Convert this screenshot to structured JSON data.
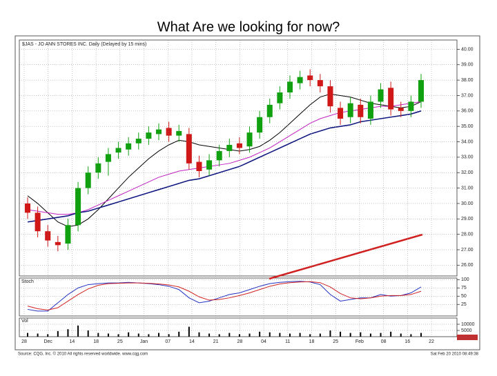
{
  "title": "What Are we looking for now?",
  "chart_data": [
    {
      "type": "candlestick",
      "title": "$JAS - JO ANN STORES INC. Daily (Delayed by 15 mins)",
      "open": [
        30.0,
        29.4,
        28.2,
        27.5,
        27.4,
        28.6,
        31.0,
        32.0,
        32.7,
        33.3,
        33.5,
        33.9,
        34.2,
        34.5,
        34.9,
        34.4,
        34.5,
        32.7,
        32.2,
        32.8,
        33.4,
        33.9,
        33.7,
        34.6,
        35.6,
        36.5,
        37.2,
        37.8,
        38.3,
        38.0,
        37.6,
        36.2,
        35.6,
        36.4,
        35.5,
        36.6,
        37.5,
        36.2,
        36.0,
        36.6
      ],
      "high": [
        30.4,
        29.8,
        28.6,
        27.9,
        29.0,
        31.4,
        32.4,
        33.0,
        33.6,
        34.0,
        34.3,
        34.6,
        35.0,
        35.2,
        35.3,
        35.1,
        34.9,
        33.1,
        33.2,
        33.8,
        34.2,
        34.3,
        35.0,
        36.0,
        36.8,
        37.6,
        38.3,
        38.6,
        38.7,
        38.4,
        38.0,
        36.6,
        36.9,
        36.8,
        37.0,
        37.8,
        37.9,
        36.6,
        37.0,
        38.4
      ],
      "low": [
        29.0,
        27.8,
        27.2,
        26.9,
        27.0,
        28.2,
        30.6,
        31.6,
        31.8,
        32.9,
        33.1,
        33.5,
        33.8,
        34.1,
        34.0,
        34.0,
        32.2,
        31.7,
        31.8,
        32.4,
        33.0,
        33.2,
        33.3,
        34.2,
        35.2,
        36.1,
        36.8,
        37.4,
        37.6,
        37.2,
        35.9,
        35.1,
        35.2,
        35.2,
        35.1,
        36.2,
        35.7,
        35.6,
        35.6,
        36.2
      ],
      "close": [
        29.4,
        28.2,
        27.6,
        27.3,
        28.6,
        31.0,
        32.0,
        32.6,
        33.2,
        33.6,
        33.9,
        34.2,
        34.6,
        34.8,
        34.4,
        34.7,
        32.6,
        32.1,
        32.8,
        33.4,
        33.8,
        33.6,
        34.6,
        35.6,
        36.4,
        37.2,
        37.9,
        38.2,
        38.0,
        37.6,
        36.3,
        35.5,
        36.5,
        35.6,
        36.6,
        37.4,
        36.1,
        36.0,
        36.6,
        38.0
      ],
      "up_color": "#10a010",
      "down_color": "#d01818",
      "overlays": [
        {
          "color": "#000000",
          "values": [
            30.5,
            30.0,
            29.4,
            28.8,
            28.5,
            28.6,
            29.0,
            29.6,
            30.3,
            31.0,
            31.7,
            32.3,
            32.9,
            33.4,
            33.8,
            34.1,
            34.0,
            33.8,
            33.7,
            33.6,
            33.5,
            33.4,
            33.5,
            33.7,
            34.1,
            34.6,
            35.2,
            35.8,
            36.4,
            36.9,
            37.1,
            37.0,
            36.9,
            36.7,
            36.5,
            36.4,
            36.3,
            36.2,
            36.3,
            36.6
          ]
        },
        {
          "color": "#c020c0",
          "values": [
            29.6,
            29.5,
            29.4,
            29.3,
            29.3,
            29.4,
            29.6,
            29.9,
            30.2,
            30.5,
            30.8,
            31.1,
            31.4,
            31.7,
            31.9,
            32.1,
            32.2,
            32.3,
            32.4,
            32.5,
            32.6,
            32.8,
            33.0,
            33.3,
            33.6,
            34.0,
            34.4,
            34.8,
            35.2,
            35.5,
            35.7,
            35.9,
            36.0,
            36.1,
            36.2,
            36.3,
            36.3,
            36.4,
            36.5,
            36.6
          ]
        },
        {
          "color": "#101880",
          "values": [
            28.8,
            28.9,
            29.0,
            29.1,
            29.2,
            29.4,
            29.5,
            29.7,
            29.9,
            30.1,
            30.3,
            30.5,
            30.7,
            30.9,
            31.1,
            31.3,
            31.5,
            31.6,
            31.8,
            32.0,
            32.2,
            32.4,
            32.7,
            33.0,
            33.3,
            33.6,
            33.9,
            34.2,
            34.5,
            34.7,
            34.9,
            35.0,
            35.1,
            35.3,
            35.4,
            35.5,
            35.6,
            35.7,
            35.8,
            36.0
          ]
        }
      ],
      "ylim": [
        25.3,
        40.6
      ],
      "yticks": [
        {
          "value": 40,
          "label": "40.00"
        },
        {
          "value": 39,
          "label": "39.00"
        },
        {
          "value": 38,
          "label": "38.00"
        },
        {
          "value": 37,
          "label": "37.00"
        },
        {
          "value": 36,
          "label": "36.00"
        },
        {
          "value": 35,
          "label": "35.00"
        },
        {
          "value": 34,
          "label": "34.00"
        },
        {
          "value": 33,
          "label": "33.00"
        },
        {
          "value": 32,
          "label": "32.00"
        },
        {
          "value": 31,
          "label": "31.00"
        },
        {
          "value": 30,
          "label": "30.00"
        },
        {
          "value": 29,
          "label": "29.00"
        },
        {
          "value": 28,
          "label": "28.00"
        },
        {
          "value": 27,
          "label": "27.00"
        },
        {
          "value": 26,
          "label": "26.00"
        }
      ],
      "grid": true,
      "date_labels": [
        "28",
        "Dec",
        "14",
        "18",
        "25",
        "Jan",
        "07",
        "14",
        "21",
        "28",
        "04",
        "11",
        "18",
        "25",
        "Feb",
        "08",
        "16",
        "22"
      ]
    },
    {
      "type": "line",
      "title": "Stoch",
      "series": [
        {
          "color": "#2030c0",
          "values": [
            10,
            5,
            5,
            30,
            55,
            75,
            85,
            88,
            90,
            90,
            92,
            90,
            88,
            85,
            80,
            70,
            45,
            30,
            35,
            45,
            55,
            60,
            70,
            80,
            88,
            92,
            94,
            95,
            93,
            85,
            55,
            35,
            40,
            45,
            45,
            55,
            50,
            52,
            60,
            78
          ]
        },
        {
          "color": "#d02020",
          "values": [
            20,
            12,
            8,
            15,
            35,
            55,
            72,
            83,
            88,
            89,
            90,
            90,
            89,
            87,
            84,
            78,
            65,
            48,
            38,
            40,
            45,
            52,
            60,
            70,
            80,
            87,
            91,
            93,
            94,
            91,
            78,
            58,
            45,
            42,
            45,
            50,
            52,
            52,
            55,
            65
          ]
        }
      ],
      "ylim": [
        -10,
        105
      ],
      "yticks": [
        100,
        75,
        50,
        25
      ],
      "grid": true
    },
    {
      "type": "bar",
      "title": "Vol",
      "color": "#000000",
      "values": [
        3000,
        2500,
        2000,
        4500,
        6000,
        9000,
        5000,
        3000,
        2500,
        2000,
        3500,
        2500,
        2000,
        3000,
        2000,
        4000,
        8000,
        3500,
        2500,
        2000,
        3000,
        2000,
        2500,
        4000,
        3500,
        3000,
        2500,
        3000,
        2000,
        2500,
        5000,
        4000,
        3000,
        3500,
        2500,
        3000,
        4000,
        2500,
        2000,
        3000
      ],
      "ylim": [
        0,
        15000
      ],
      "yticks": [
        10000,
        5000
      ],
      "grid": true
    }
  ],
  "source": "Source: CQG, Inc. © 2010 All rights reserved worldwide. www.cqg.com",
  "timestamp": "Sat Feb 20 2010 08:49:38"
}
